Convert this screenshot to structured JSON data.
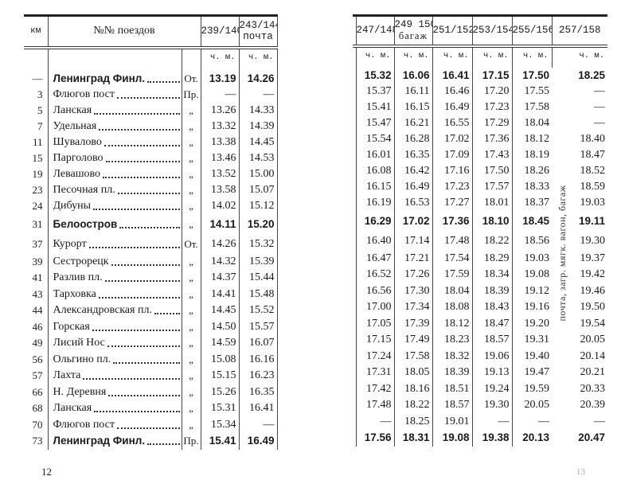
{
  "left_page": {
    "headers": {
      "km": "км",
      "trains": "№№ поездов",
      "cols": [
        "239/140",
        "243/144"
      ],
      "col_notes": [
        "",
        "почта"
      ]
    },
    "units": "ч. м.",
    "page_number": "12"
  },
  "right_page": {
    "headers": {
      "cols": [
        "247/148",
        "249 150",
        "251/152",
        "253/154",
        "255/156",
        "257/158"
      ],
      "col_notes": [
        "",
        "багаж",
        "",
        "",
        "",
        ""
      ]
    },
    "units": "ч. м.",
    "vertical_note": "почта, загр. мягк. вагон, багаж",
    "page_number": "13"
  },
  "rows": [
    {
      "km": "—",
      "station": "Ленинград Финл.",
      "mark": "От.",
      "bold": true,
      "times": [
        "13.19",
        "14.26",
        "15.32",
        "16.06",
        "16.41",
        "17.15",
        "17.50",
        "18.25"
      ]
    },
    {
      "km": "3",
      "station": "Флюгов пост",
      "mark": "Пр.",
      "times": [
        "—",
        "—",
        "15.37",
        "16.11",
        "16.46",
        "17.20",
        "17.55",
        "—"
      ]
    },
    {
      "km": "5",
      "station": "Ланская",
      "mark": "„",
      "times": [
        "13.26",
        "14.33",
        "15.41",
        "16.15",
        "16.49",
        "17.23",
        "17.58",
        "—"
      ]
    },
    {
      "km": "7",
      "station": "Удельная",
      "mark": "„",
      "times": [
        "13.32",
        "14.39",
        "15.47",
        "16.21",
        "16.55",
        "17.29",
        "18.04",
        "—"
      ]
    },
    {
      "km": "11",
      "station": "Шувалово",
      "mark": "„",
      "times": [
        "13.38",
        "14.45",
        "15.54",
        "16.28",
        "17.02",
        "17.36",
        "18.12",
        "18.40"
      ]
    },
    {
      "km": "15",
      "station": "Парголово",
      "mark": "„",
      "times": [
        "13.46",
        "14.53",
        "16.01",
        "16.35",
        "17.09",
        "17.43",
        "18.19",
        "18.47"
      ]
    },
    {
      "km": "19",
      "station": "Левашово",
      "mark": "„",
      "times": [
        "13.52",
        "15.00",
        "16.08",
        "16.42",
        "17.16",
        "17.50",
        "18.26",
        "18.52"
      ]
    },
    {
      "km": "23",
      "station": "Песочная пл.",
      "mark": "„",
      "times": [
        "13.58",
        "15.07",
        "16.15",
        "16.49",
        "17.23",
        "17.57",
        "18.33",
        "18.59"
      ]
    },
    {
      "km": "24",
      "station": "Дибуны",
      "mark": "„",
      "times": [
        "14.02",
        "15.12",
        "16.19",
        "16.53",
        "17.27",
        "18.01",
        "18.37",
        "19.03"
      ]
    },
    {
      "km": "31",
      "station": "Белоостров",
      "mark": "„",
      "bold": true,
      "times": [
        "14.11",
        "15.20",
        "16.29",
        "17.02",
        "17.36",
        "18.10",
        "18.45",
        "19.11"
      ]
    },
    {
      "km": "37",
      "station": "Курорт",
      "mark": "От.",
      "times": [
        "14.26",
        "15.32",
        "16.40",
        "17.14",
        "17.48",
        "18.22",
        "18.56",
        "19.30"
      ]
    },
    {
      "km": "39",
      "station": "Сестрорецк",
      "mark": "„",
      "times": [
        "14.32",
        "15.39",
        "16.47",
        "17.21",
        "17.54",
        "18.29",
        "19.03",
        "19.37"
      ]
    },
    {
      "km": "41",
      "station": "Разлив пл.",
      "mark": "„",
      "times": [
        "14.37",
        "15.44",
        "16.52",
        "17.26",
        "17.59",
        "18.34",
        "19.08",
        "19.42"
      ]
    },
    {
      "km": "43",
      "station": "Тарховка",
      "mark": "„",
      "times": [
        "14.41",
        "15.48",
        "16.56",
        "17.30",
        "18.04",
        "18.39",
        "19.12",
        "19.46"
      ]
    },
    {
      "km": "44",
      "station": "Александровская пл.",
      "mark": "„",
      "times": [
        "14.45",
        "15.52",
        "17.00",
        "17.34",
        "18.08",
        "18.43",
        "19.16",
        "19.50"
      ]
    },
    {
      "km": "46",
      "station": "Горская",
      "mark": "„",
      "times": [
        "14.50",
        "15.57",
        "17.05",
        "17.39",
        "18.12",
        "18.47",
        "19.20",
        "19.54"
      ]
    },
    {
      "km": "49",
      "station": "Лисий Нос",
      "mark": "„",
      "times": [
        "14.59",
        "16.07",
        "17.15",
        "17.49",
        "18.23",
        "18.57",
        "19.31",
        "20.05"
      ]
    },
    {
      "km": "56",
      "station": "Ольгино пл.",
      "mark": "„",
      "times": [
        "15.08",
        "16.16",
        "17.24",
        "17.58",
        "18.32",
        "19.06",
        "19.40",
        "20.14"
      ]
    },
    {
      "km": "57",
      "station": "Лахта",
      "mark": "„",
      "times": [
        "15.15",
        "16.23",
        "17.31",
        "18.05",
        "18.39",
        "19.13",
        "19.47",
        "20.21"
      ]
    },
    {
      "km": "66",
      "station": "Н. Деревня",
      "mark": "„",
      "times": [
        "15.26",
        "16.35",
        "17.42",
        "18.16",
        "18.51",
        "19.24",
        "19.59",
        "20.33"
      ]
    },
    {
      "km": "68",
      "station": "Ланская",
      "mark": "„",
      "times": [
        "15.31",
        "16.41",
        "17.48",
        "18.22",
        "18.57",
        "19.30",
        "20.05",
        "20.39"
      ]
    },
    {
      "km": "70",
      "station": "Флюгов пост",
      "mark": "„",
      "times": [
        "15.34",
        "—",
        "—",
        "18.25",
        "19.01",
        "—",
        "—",
        "—"
      ]
    },
    {
      "km": "73",
      "station": "Ленинград Финл.",
      "mark": "Пр.",
      "bold": true,
      "times": [
        "15.41",
        "16.49",
        "17.56",
        "18.31",
        "19.08",
        "19.38",
        "20.13",
        "20.47"
      ]
    }
  ]
}
